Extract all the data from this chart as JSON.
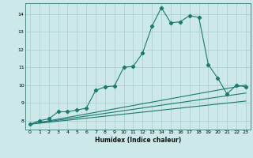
{
  "xlabel": "Humidex (Indice chaleur)",
  "background_color": "#cce8e8",
  "line_color": "#1a7a6e",
  "grid_color": "#aacccc",
  "xlim": [
    -0.5,
    23.5
  ],
  "ylim": [
    7.5,
    14.6
  ],
  "xticks": [
    0,
    1,
    2,
    3,
    4,
    5,
    6,
    7,
    8,
    9,
    10,
    11,
    12,
    13,
    14,
    15,
    16,
    17,
    18,
    19,
    20,
    21,
    22,
    23
  ],
  "yticks": [
    8,
    9,
    10,
    11,
    12,
    13,
    14
  ],
  "main_series": {
    "x": [
      0,
      1,
      2,
      3,
      4,
      5,
      6,
      7,
      8,
      9,
      10,
      11,
      12,
      13,
      14,
      15,
      16,
      17,
      18,
      19,
      20,
      21,
      22,
      23
    ],
    "y": [
      7.8,
      8.0,
      8.1,
      8.5,
      8.5,
      8.6,
      8.7,
      9.7,
      9.9,
      9.95,
      11.0,
      11.05,
      11.8,
      13.3,
      14.35,
      13.5,
      13.55,
      13.9,
      13.8,
      11.15,
      10.4,
      9.5,
      10.0,
      9.9
    ]
  },
  "ref_lines": [
    {
      "x": [
        0,
        23
      ],
      "y": [
        7.8,
        10.0
      ]
    },
    {
      "x": [
        0,
        23
      ],
      "y": [
        7.8,
        9.55
      ]
    },
    {
      "x": [
        0,
        23
      ],
      "y": [
        7.8,
        9.1
      ]
    }
  ]
}
